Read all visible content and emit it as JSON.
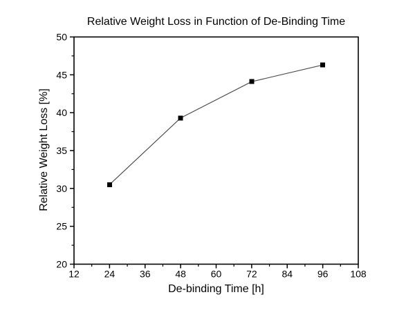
{
  "page": {
    "background": "#ffffff"
  },
  "chart_data": {
    "type": "line",
    "title": "Relative Weight Loss in Function of De-Binding Time",
    "xlabel": "De-binding Time [h]",
    "ylabel": "Relative Weight Loss [%]",
    "series": [
      {
        "name": "relative-weight-loss",
        "x": [
          24,
          48,
          72,
          96
        ],
        "y": [
          30.5,
          39.3,
          44.1,
          46.3
        ]
      }
    ],
    "xlim": [
      12,
      108
    ],
    "ylim": [
      20,
      50
    ],
    "x_major_ticks": [
      12,
      24,
      36,
      48,
      60,
      72,
      84,
      96,
      108
    ],
    "x_minor_ticks": [
      18,
      30,
      42,
      54,
      66,
      78,
      90,
      102
    ],
    "y_major_ticks": [
      20,
      25,
      30,
      35,
      40,
      45,
      50
    ],
    "y_minor_ticks": [
      22.5,
      27.5,
      32.5,
      37.5,
      42.5,
      47.5
    ],
    "grid": false,
    "legend_position": "none",
    "marker": "filled-square",
    "tick_direction": "out",
    "colors": {
      "marker": "#000000",
      "line": "#4d4d4d",
      "axis": "#000000",
      "text": "#000000"
    }
  }
}
